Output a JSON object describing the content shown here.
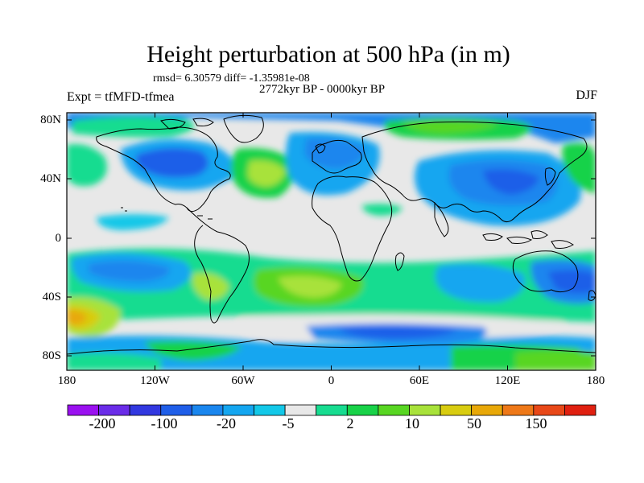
{
  "plot": {
    "title": "Height perturbation at 500 hPa (in m)",
    "stats": "rmsd= 6.30579  diff= -1.35981e-08",
    "period": "2772kyr BP - 0000kyr BP",
    "experiment": "Expt = tfMFD-tfmea",
    "season": "DJF"
  },
  "axes": {
    "y_ticks": [
      "80N",
      "40N",
      "0",
      "40S",
      "80S"
    ],
    "x_ticks": [
      "180",
      "120W",
      "60W",
      "0",
      "60E",
      "120E",
      "180"
    ]
  },
  "colorbar": {
    "labels": [
      "-200",
      "-100",
      "-20",
      "-5",
      "2",
      "10",
      "50",
      "150"
    ],
    "colors": [
      "#9a10f0",
      "#6a2ce8",
      "#3238e0",
      "#1f5ee8",
      "#1a86ee",
      "#14a6f0",
      "#13c8e8",
      "#e8e8e8",
      "#17dc90",
      "#18d248",
      "#58d622",
      "#a8e23a",
      "#d8cc10",
      "#e8a808",
      "#ee7818",
      "#e84818",
      "#e02010"
    ]
  },
  "colors": {
    "ocean_neutral": "#e8e8e8",
    "coastline": "#000000"
  }
}
